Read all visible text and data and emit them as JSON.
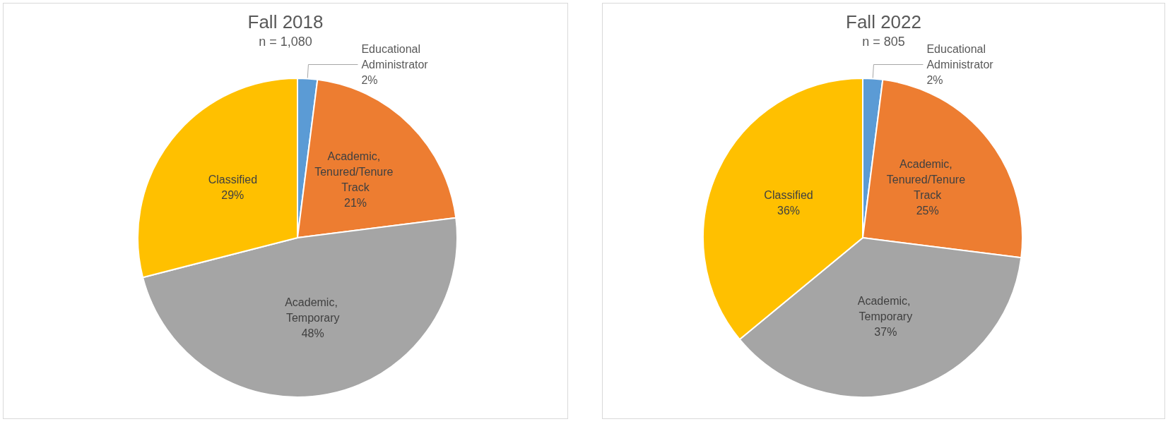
{
  "chart_data": [
    {
      "type": "pie",
      "title": "Fall 2018",
      "subtitle": "n = 1,080",
      "categories": [
        "Educational Administrator",
        "Academic, Tenured/Tenure Track",
        "Academic, Temporary",
        "Classified"
      ],
      "values": [
        2,
        21,
        48,
        29
      ],
      "value_labels": [
        "2%",
        "21%",
        "48%",
        "29%"
      ],
      "colors": [
        "#5b9bd5",
        "#ed7d31",
        "#a5a5a5",
        "#ffc000"
      ],
      "legend": false
    },
    {
      "type": "pie",
      "title": "Fall 2022",
      "subtitle": "n = 805",
      "categories": [
        "Educational Administrator",
        "Academic, Tenured/Tenure Track",
        "Academic, Temporary",
        "Classified"
      ],
      "values": [
        2,
        25,
        37,
        36
      ],
      "value_labels": [
        "2%",
        "25%",
        "37%",
        "36%"
      ],
      "colors": [
        "#5b9bd5",
        "#ed7d31",
        "#a5a5a5",
        "#ffc000"
      ],
      "legend": false
    }
  ]
}
